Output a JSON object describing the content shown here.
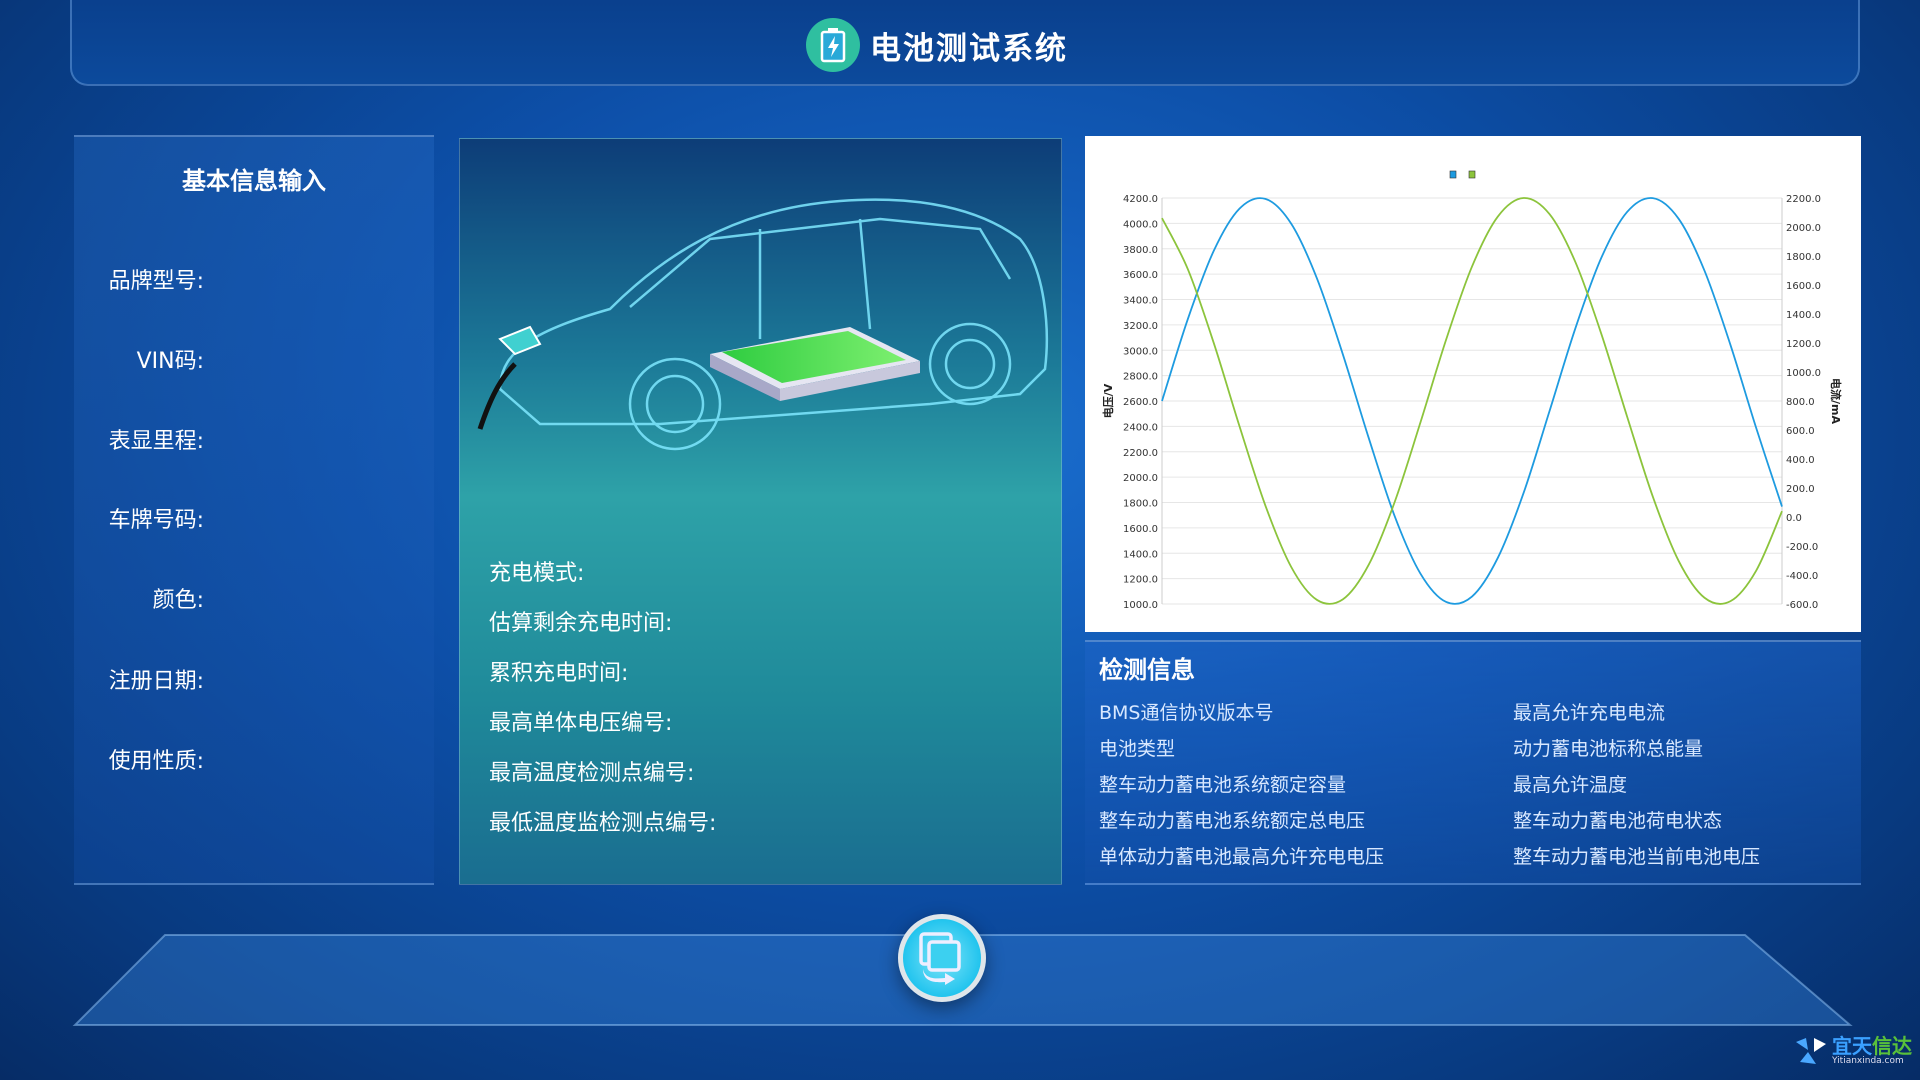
{
  "header": {
    "title": "电池测试系统",
    "icon": "battery-charging-icon"
  },
  "basic_info": {
    "title": "基本信息输入",
    "fields": [
      "品牌型号:",
      "VIN码:",
      "表显里程:",
      "车牌号码:",
      "颜色:",
      "注册日期:",
      "使用性质:"
    ]
  },
  "charging": {
    "fields": [
      "充电模式:",
      "估算剩余充电时间:",
      "累积充电时间:",
      "最高单体电压编号:",
      "最高温度检测点编号:",
      "最低温度监检测点编号:"
    ]
  },
  "detection": {
    "title": "检测信息",
    "col1": [
      "BMS通信协议版本号",
      "电池类型",
      "整车动力蓄电池系统额定容量",
      "整车动力蓄电池系统额定总电压",
      "单体动力蓄电池最高允许充电电压"
    ],
    "col2": [
      "最高允许充电电流",
      "动力蓄电池标称总能量",
      "最高允许温度",
      "整车动力蓄电池荷电状态",
      "整车动力蓄电池当前电池电压"
    ]
  },
  "action_button": {
    "icon": "copy-transfer-icon"
  },
  "logo": {
    "text_a": "宜天",
    "text_b": "信达",
    "sub": "Yitianxinda.com"
  },
  "chart_data": {
    "type": "line",
    "title": "",
    "xlabel": "",
    "ylabel": "电压/V",
    "ylabel_right": "电流/mA",
    "ylim": [
      1000,
      4200
    ],
    "ylim_right": [
      -600,
      2200
    ],
    "yticks": [
      "4200.0",
      "4000.0",
      "3800.0",
      "3600.0",
      "3400.0",
      "3200.0",
      "3000.0",
      "2800.0",
      "2600.0",
      "2400.0",
      "2200.0",
      "2000.0",
      "1800.0",
      "1600.0",
      "1400.0",
      "1200.0",
      "1000.0"
    ],
    "yticks_right": [
      "2200.0",
      "2000.0",
      "1800.0",
      "1600.0",
      "1400.0",
      "1200.0",
      "1000.0",
      "800.0",
      "600.0",
      "400.0",
      "200.0",
      "0.0",
      "-200.0",
      "-400.0",
      "-600.0"
    ],
    "grid": true,
    "legend": "top-center",
    "series": [
      {
        "axis": "left",
        "color": "#1e9be0",
        "values": [
          2600,
          3246,
          3782,
          4116,
          4193,
          3998,
          3565,
          2968,
          2310,
          1696,
          1241,
          1016,
          1059,
          1364,
          1877,
          2520,
          3172,
          3726,
          4089,
          4199,
          4036,
          3627,
          3045,
          2388,
          1768
        ]
      },
      {
        "axis": "right",
        "color": "#8cc43c",
        "values": [
          2061,
          1709,
          1202,
          626,
          80,
          -344,
          -572,
          -568,
          -330,
          100,
          650,
          1224,
          1727,
          2072,
          2200,
          2089,
          1759,
          1266,
          695,
          140,
          -303,
          -557,
          -581,
          -370,
          40
        ]
      }
    ]
  }
}
